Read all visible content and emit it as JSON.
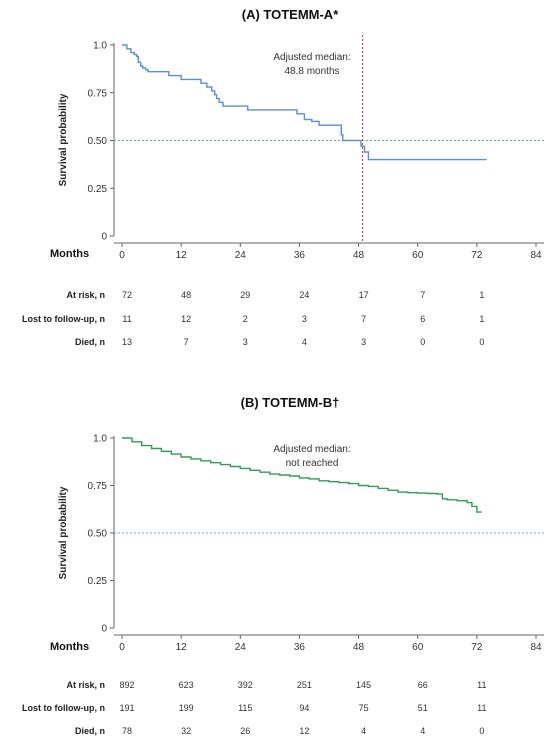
{
  "chart_data": [
    {
      "type": "line",
      "panel": "A",
      "title": "(A)  TOTEMM-A*",
      "xlabel": "Months",
      "ylabel": "Survival probability",
      "xlim": [
        0,
        84
      ],
      "ylim": [
        0,
        1
      ],
      "x_ticks": [
        0,
        12,
        24,
        36,
        48,
        60,
        72,
        84
      ],
      "y_ticks": [
        0,
        0.25,
        0.5,
        0.75,
        1.0
      ],
      "y_tick_labels": [
        "0",
        "0.25",
        "0.50",
        "0.75",
        "1.0"
      ],
      "color": "#5b8fd0",
      "reference_y": 0.5,
      "median_x": 48.8,
      "median_color": "#e53935",
      "annotation": [
        "Adjusted median:",
        "48.8 months"
      ],
      "series": [
        {
          "x": [
            0,
            1,
            1.8,
            2.5,
            3,
            3.3,
            3.8,
            4.2,
            4.8,
            5.3,
            9.5,
            12,
            16,
            17.2,
            18.2,
            18.8,
            19.2,
            19.7,
            20.5,
            25.5,
            35.5,
            37,
            38.5,
            40,
            44.5,
            44.8,
            48.5,
            49.2,
            50,
            74
          ],
          "y": [
            1.0,
            0.98,
            0.96,
            0.95,
            0.94,
            0.91,
            0.89,
            0.88,
            0.87,
            0.86,
            0.84,
            0.82,
            0.8,
            0.78,
            0.76,
            0.74,
            0.72,
            0.7,
            0.68,
            0.66,
            0.64,
            0.61,
            0.6,
            0.58,
            0.53,
            0.5,
            0.47,
            0.44,
            0.4,
            0.4
          ]
        }
      ],
      "risk_table": {
        "x": [
          0,
          12,
          24,
          36,
          48,
          60,
          72
        ],
        "rows": [
          {
            "label": "At risk, n",
            "values": [
              "72",
              "48",
              "29",
              "24",
              "17",
              "7",
              "1"
            ]
          },
          {
            "label": "Lost to follow-up, n",
            "values": [
              "11",
              "12",
              "2",
              "3",
              "7",
              "6",
              "1"
            ]
          },
          {
            "label": "Died, n",
            "values": [
              "13",
              "7",
              "3",
              "4",
              "3",
              "0",
              "0"
            ]
          }
        ]
      }
    },
    {
      "type": "line",
      "panel": "B",
      "title": "(B) TOTEMM-B†",
      "xlabel": "Months",
      "ylabel": "Survival probability",
      "xlim": [
        0,
        84
      ],
      "ylim": [
        0,
        1
      ],
      "x_ticks": [
        0,
        12,
        24,
        36,
        48,
        60,
        72,
        84
      ],
      "y_ticks": [
        0,
        0.25,
        0.5,
        0.75,
        1.0
      ],
      "y_tick_labels": [
        "0",
        "0.25",
        "0.50",
        "0.75",
        "1.0"
      ],
      "color": "#2e9e5b",
      "reference_y": 0.5,
      "annotation": [
        "Adjusted median:",
        "not reached"
      ],
      "series": [
        {
          "x": [
            0,
            2,
            4,
            6,
            8,
            10,
            12,
            14,
            16,
            18,
            20,
            22,
            24,
            26,
            28,
            30,
            32,
            34,
            36,
            38,
            40,
            42,
            44,
            46,
            48,
            50,
            52,
            54,
            56,
            58,
            60,
            62,
            64,
            65,
            66,
            68,
            70,
            71,
            72,
            73
          ],
          "y": [
            1.0,
            0.98,
            0.96,
            0.945,
            0.93,
            0.915,
            0.9,
            0.89,
            0.88,
            0.87,
            0.86,
            0.85,
            0.84,
            0.83,
            0.82,
            0.81,
            0.805,
            0.8,
            0.79,
            0.785,
            0.775,
            0.77,
            0.765,
            0.76,
            0.75,
            0.745,
            0.735,
            0.725,
            0.715,
            0.712,
            0.71,
            0.708,
            0.705,
            0.68,
            0.675,
            0.67,
            0.66,
            0.64,
            0.61,
            0.61
          ]
        }
      ],
      "risk_table": {
        "x": [
          0,
          12,
          24,
          36,
          48,
          60,
          72
        ],
        "rows": [
          {
            "label": "At risk, n",
            "values": [
              "892",
              "623",
              "392",
              "251",
              "145",
              "66",
              "11"
            ]
          },
          {
            "label": "Lost to follow-up, n",
            "values": [
              "191",
              "199",
              "115",
              "94",
              "75",
              "51",
              "11"
            ]
          },
          {
            "label": "Died, n",
            "values": [
              "78",
              "32",
              "26",
              "12",
              "4",
              "4",
              "0"
            ]
          }
        ]
      }
    }
  ]
}
